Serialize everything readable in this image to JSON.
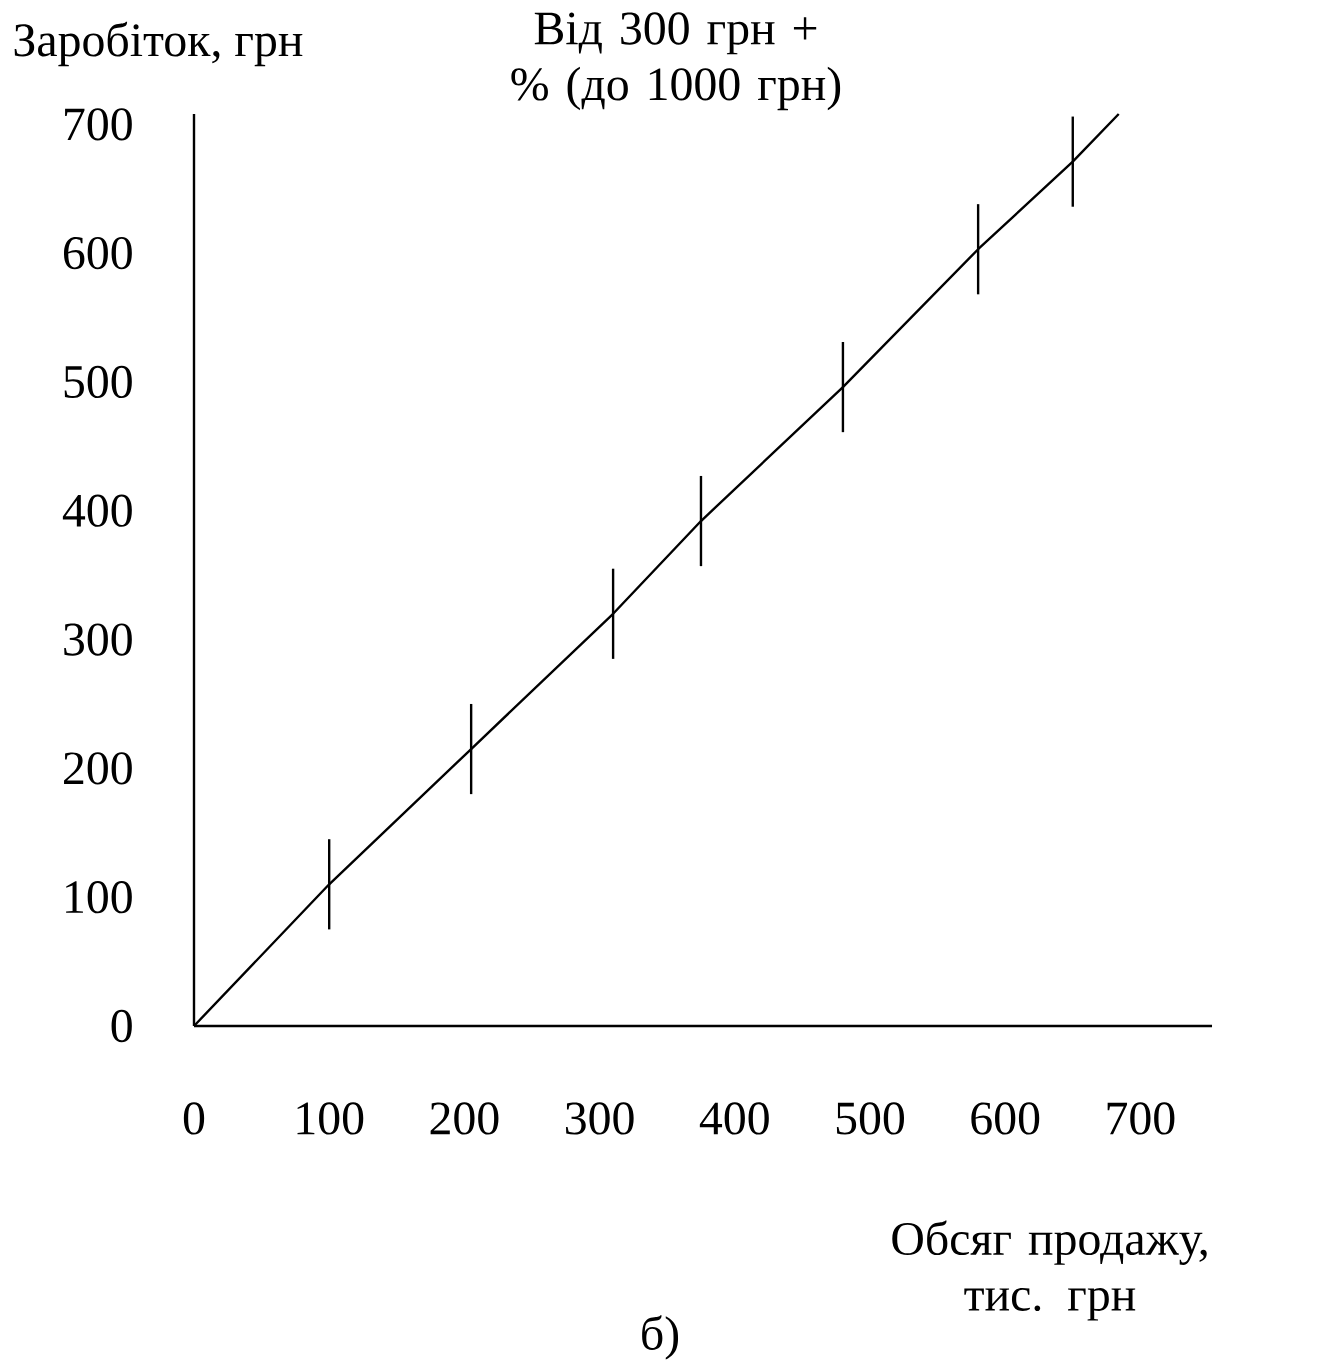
{
  "chart_data": {
    "type": "line",
    "title": "Від 300 грн + % (до 1000 грн)",
    "xlabel": "Обсяг продажу, тис. грн",
    "ylabel": "Заробіток, грн",
    "annotations": [
      "б)"
    ],
    "x": [
      0,
      100,
      205,
      310,
      375,
      480,
      580,
      650,
      684
    ],
    "series": [
      {
        "color": "#000000",
        "values": [
          0,
          110,
          215,
          320,
          392,
          496,
          603,
          671,
          708
        ],
        "errors": [
          null,
          35,
          35,
          35,
          35,
          35,
          35,
          35,
          null
        ]
      }
    ],
    "line_style": "solid",
    "xlim": [
      0,
      753
    ],
    "ylim": [
      0,
      708
    ],
    "xticks": [
      0,
      100,
      200,
      300,
      400,
      500,
      600,
      700
    ],
    "yticks": [
      0,
      100,
      200,
      300,
      400,
      500,
      600,
      700
    ]
  }
}
